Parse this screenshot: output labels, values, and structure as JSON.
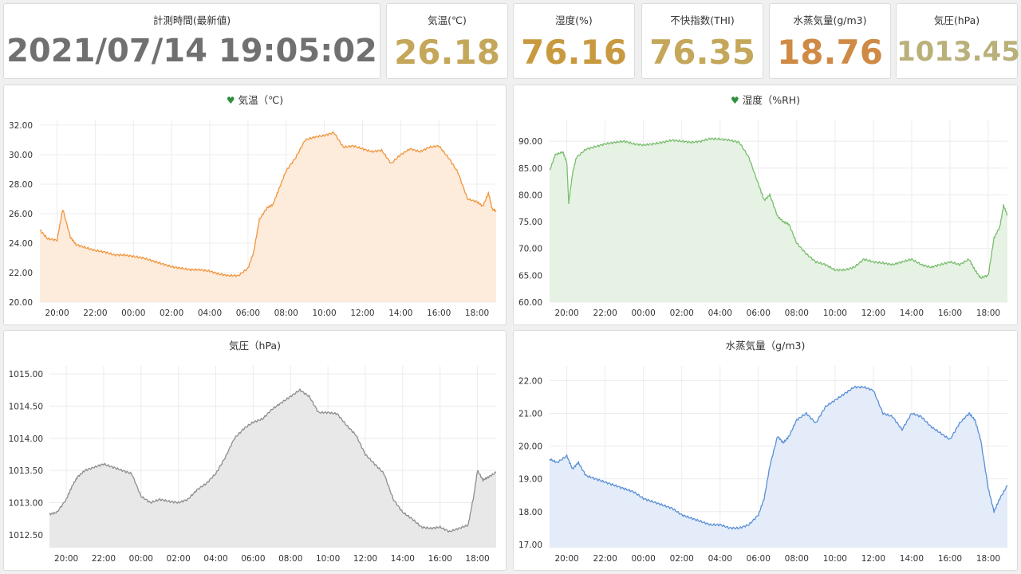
{
  "stats": [
    {
      "title": "計測時間(最新値)",
      "value": "2021/07/14 19:05:02",
      "color": "#707070"
    },
    {
      "title": "気温(℃)",
      "value": "26.18",
      "color": "#c4a75a"
    },
    {
      "title": "湿度(%)",
      "value": "76.16",
      "color": "#c89a40"
    },
    {
      "title": "不快指数(THI)",
      "value": "76.35",
      "color": "#c4a75a"
    },
    {
      "title": "水蒸気量(g/m3)",
      "value": "18.76",
      "color": "#cf8a45"
    },
    {
      "title": "気圧(hPa)",
      "value": "1013.45",
      "color": "#b9b07a"
    }
  ],
  "chart_data": [
    {
      "id": "temp",
      "type": "area",
      "title": "気温（℃)",
      "icon": "heart-icon",
      "color": "#f0963c",
      "fill": "#fdebdc",
      "ylim": [
        20,
        32
      ],
      "yticks": [
        "32.00",
        "30.00",
        "28.00",
        "26.00",
        "24.00",
        "22.00",
        "20.00"
      ],
      "xticks": [
        "20:00",
        "22:00",
        "00:00",
        "02:00",
        "04:00",
        "06:00",
        "08:00",
        "10:00",
        "12:00",
        "14:00",
        "16:00",
        "18:00"
      ],
      "x_hours": [
        19.1,
        19.5,
        20.0,
        20.3,
        20.7,
        21.0,
        21.5,
        22.0,
        22.5,
        23.0,
        23.5,
        24.0,
        24.5,
        25.0,
        25.5,
        26.0,
        26.5,
        27.0,
        27.5,
        28.0,
        28.5,
        29.0,
        29.5,
        30.0,
        30.3,
        30.6,
        31.0,
        31.3,
        31.6,
        32.0,
        32.5,
        33.0,
        33.5,
        34.0,
        34.5,
        35.0,
        35.5,
        36.0,
        36.5,
        37.0,
        37.5,
        38.0,
        38.5,
        39.0,
        39.5,
        40.0,
        40.5,
        41.0,
        41.5,
        42.0,
        42.3,
        42.6,
        42.8,
        43.0
      ],
      "values": [
        24.9,
        24.3,
        24.2,
        26.3,
        24.4,
        23.9,
        23.7,
        23.5,
        23.4,
        23.2,
        23.2,
        23.1,
        23.0,
        22.8,
        22.6,
        22.4,
        22.3,
        22.2,
        22.2,
        22.1,
        21.9,
        21.8,
        21.8,
        22.3,
        23.4,
        25.6,
        26.4,
        26.6,
        27.6,
        28.9,
        29.8,
        31.0,
        31.2,
        31.3,
        31.5,
        30.5,
        30.6,
        30.4,
        30.2,
        30.3,
        29.4,
        30.0,
        30.4,
        30.2,
        30.5,
        30.6,
        29.8,
        28.8,
        27.0,
        26.8,
        26.5,
        27.4,
        26.3,
        26.2
      ]
    },
    {
      "id": "hum",
      "type": "area",
      "title": "湿度（%RH)",
      "icon": "heart-icon",
      "color": "#79be6e",
      "fill": "#e6f2e3",
      "ylim": [
        60,
        93
      ],
      "yticks": [
        "90.00",
        "85.00",
        "80.00",
        "75.00",
        "70.00",
        "65.00",
        "60.00"
      ],
      "xticks": [
        "20:00",
        "22:00",
        "00:00",
        "02:00",
        "04:00",
        "06:00",
        "08:00",
        "10:00",
        "12:00",
        "14:00",
        "16:00",
        "18:00"
      ],
      "x_hours": [
        19.1,
        19.4,
        19.8,
        20.0,
        20.1,
        20.3,
        20.5,
        21.0,
        21.5,
        22.0,
        22.5,
        23.0,
        23.5,
        24.0,
        24.5,
        25.0,
        25.5,
        26.0,
        26.5,
        27.0,
        27.5,
        28.0,
        28.5,
        29.0,
        29.5,
        30.0,
        30.3,
        30.6,
        31.0,
        31.3,
        31.6,
        32.0,
        32.5,
        33.0,
        33.5,
        34.0,
        34.5,
        35.0,
        35.5,
        36.0,
        36.5,
        37.0,
        37.5,
        38.0,
        38.5,
        39.0,
        39.5,
        40.0,
        40.5,
        41.0,
        41.3,
        41.6,
        42.0,
        42.3,
        42.6,
        42.8,
        43.0
      ],
      "values": [
        84.5,
        87.5,
        88.0,
        86.0,
        78.5,
        84.0,
        87.0,
        88.5,
        89.0,
        89.5,
        89.8,
        90.0,
        89.5,
        89.3,
        89.5,
        89.8,
        90.2,
        90.0,
        89.8,
        90.0,
        90.5,
        90.4,
        90.2,
        89.8,
        87.0,
        82.0,
        79.0,
        80.0,
        76.0,
        75.0,
        74.5,
        71.0,
        69.0,
        67.5,
        67.0,
        66.0,
        66.0,
        66.5,
        68.0,
        67.5,
        67.3,
        67.0,
        67.5,
        68.0,
        67.0,
        66.5,
        67.0,
        67.5,
        67.0,
        68.0,
        66.0,
        64.5,
        65.0,
        72.0,
        74.0,
        78.0,
        76.2
      ]
    },
    {
      "id": "pres",
      "type": "area",
      "title": "気圧（hPa)",
      "icon": "",
      "color": "#8e8e8e",
      "fill": "#e8e8e8",
      "ylim": [
        1012.3,
        1015.05
      ],
      "yticks": [
        "1015.00",
        "1014.50",
        "1014.00",
        "1013.50",
        "1013.00",
        "1012.50"
      ],
      "xticks": [
        "20:00",
        "22:00",
        "00:00",
        "02:00",
        "04:00",
        "06:00",
        "08:00",
        "10:00",
        "12:00",
        "14:00",
        "16:00",
        "18:00"
      ],
      "x_hours": [
        19.1,
        19.5,
        20.0,
        20.3,
        20.6,
        21.0,
        21.5,
        22.0,
        22.5,
        23.0,
        23.5,
        24.0,
        24.5,
        25.0,
        25.5,
        26.0,
        26.5,
        27.0,
        27.5,
        28.0,
        28.5,
        29.0,
        29.5,
        30.0,
        30.5,
        31.0,
        31.5,
        32.0,
        32.5,
        33.0,
        33.5,
        34.0,
        34.5,
        35.0,
        35.5,
        36.0,
        36.5,
        37.0,
        37.5,
        38.0,
        38.5,
        39.0,
        39.5,
        40.0,
        40.5,
        41.0,
        41.5,
        41.8,
        42.0,
        42.3,
        42.6,
        43.0
      ],
      "values": [
        1012.82,
        1012.85,
        1013.05,
        1013.25,
        1013.4,
        1013.5,
        1013.55,
        1013.6,
        1013.55,
        1013.5,
        1013.45,
        1013.1,
        1013.0,
        1013.05,
        1013.02,
        1013.0,
        1013.05,
        1013.2,
        1013.3,
        1013.45,
        1013.7,
        1014.0,
        1014.15,
        1014.25,
        1014.3,
        1014.45,
        1014.55,
        1014.65,
        1014.75,
        1014.65,
        1014.4,
        1014.4,
        1014.38,
        1014.2,
        1014.05,
        1013.75,
        1013.6,
        1013.45,
        1013.05,
        1012.85,
        1012.75,
        1012.62,
        1012.6,
        1012.62,
        1012.55,
        1012.6,
        1012.65,
        1013.1,
        1013.5,
        1013.35,
        1013.4,
        1013.47
      ]
    },
    {
      "id": "vap",
      "type": "area",
      "title": "水蒸気量（g/m3)",
      "icon": "",
      "color": "#5a8fd6",
      "fill": "#e3ecf8",
      "ylim": [
        16.9,
        22.3
      ],
      "yticks": [
        "22.00",
        "21.00",
        "20.00",
        "19.00",
        "18.00",
        "17.00"
      ],
      "xticks": [
        "20:00",
        "22:00",
        "00:00",
        "02:00",
        "04:00",
        "06:00",
        "08:00",
        "10:00",
        "12:00",
        "14:00",
        "16:00",
        "18:00"
      ],
      "x_hours": [
        19.1,
        19.5,
        20.0,
        20.3,
        20.6,
        21.0,
        21.5,
        22.0,
        22.5,
        23.0,
        23.5,
        24.0,
        24.5,
        25.0,
        25.5,
        26.0,
        26.5,
        27.0,
        27.5,
        28.0,
        28.5,
        29.0,
        29.5,
        30.0,
        30.3,
        30.6,
        31.0,
        31.3,
        31.6,
        32.0,
        32.5,
        33.0,
        33.5,
        34.0,
        34.5,
        35.0,
        35.5,
        36.0,
        36.5,
        37.0,
        37.5,
        38.0,
        38.5,
        39.0,
        39.5,
        40.0,
        40.5,
        41.0,
        41.3,
        41.6,
        42.0,
        42.3,
        42.6,
        43.0
      ],
      "values": [
        19.6,
        19.5,
        19.7,
        19.3,
        19.5,
        19.1,
        19.0,
        18.9,
        18.8,
        18.7,
        18.6,
        18.4,
        18.3,
        18.2,
        18.1,
        17.9,
        17.8,
        17.7,
        17.6,
        17.6,
        17.5,
        17.5,
        17.6,
        17.9,
        18.4,
        19.4,
        20.3,
        20.1,
        20.3,
        20.8,
        21.0,
        20.7,
        21.2,
        21.4,
        21.6,
        21.8,
        21.8,
        21.7,
        21.0,
        20.9,
        20.5,
        21.0,
        20.9,
        20.6,
        20.4,
        20.2,
        20.7,
        21.0,
        20.8,
        20.2,
        18.7,
        18.0,
        18.4,
        18.8
      ]
    }
  ]
}
